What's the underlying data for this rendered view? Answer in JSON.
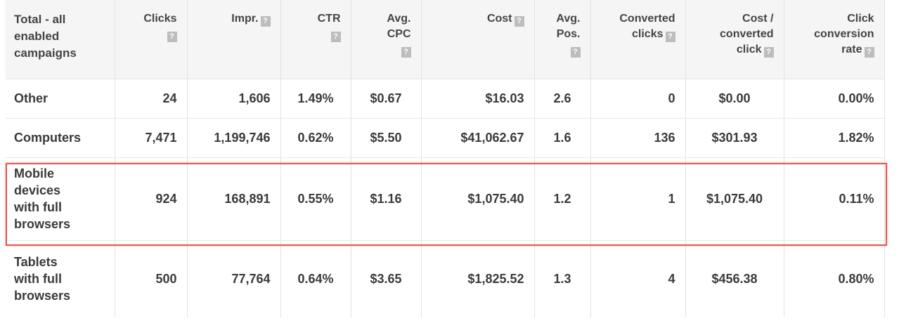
{
  "columns": [
    {
      "label": "Total - all\nenabled\ncampaigns",
      "help": false
    },
    {
      "label": "Clicks",
      "help": true,
      "help_block": true
    },
    {
      "label": "Impr.",
      "help": true
    },
    {
      "label": "CTR",
      "help": true,
      "help_block": true
    },
    {
      "label": "Avg.\nCPC",
      "help": true,
      "help_block": true
    },
    {
      "label": "Cost",
      "help": true
    },
    {
      "label": "Avg.\nPos.",
      "help": true,
      "help_block": true
    },
    {
      "label": "Converted\nclicks",
      "help": true
    },
    {
      "label": "Cost /\nconverted\nclick",
      "help": true
    },
    {
      "label": "Click\nconversion\nrate",
      "help": true
    }
  ],
  "help_glyph": "?",
  "rows": [
    {
      "segment": "Other",
      "clicks": "24",
      "impr": "1,606",
      "ctr": "1.49%",
      "avg_cpc": "$0.67",
      "cost": "$16.03",
      "avg_pos": "2.6",
      "converted_clicks": "0",
      "cost_per_converted_click": "$0.00",
      "click_conversion_rate": "0.00%"
    },
    {
      "segment": "Computers",
      "clicks": "7,471",
      "impr": "1,199,746",
      "ctr": "0.62%",
      "avg_cpc": "$5.50",
      "cost": "$41,062.67",
      "avg_pos": "1.6",
      "converted_clicks": "136",
      "cost_per_converted_click": "$301.93",
      "click_conversion_rate": "1.82%"
    },
    {
      "segment": "Mobile\ndevices\nwith full\nbrowsers",
      "clicks": "924",
      "impr": "168,891",
      "ctr": "0.55%",
      "avg_cpc": "$1.16",
      "cost": "$1,075.40",
      "avg_pos": "1.2",
      "converted_clicks": "1",
      "cost_per_converted_click": "$1,075.40",
      "click_conversion_rate": "0.11%"
    },
    {
      "segment": "Tablets\nwith full\nbrowsers",
      "clicks": "500",
      "impr": "77,764",
      "ctr": "0.64%",
      "avg_cpc": "$3.65",
      "cost": "$1,825.52",
      "avg_pos": "1.3",
      "converted_clicks": "4",
      "cost_per_converted_click": "$456.38",
      "click_conversion_rate": "0.80%"
    }
  ],
  "highlighted_row": "Mobile devices with full browsers",
  "colors": {
    "highlight_border": "#e05a4f",
    "header_bg": "#f5f5f5",
    "help_icon_bg": "#bdbdbd"
  }
}
